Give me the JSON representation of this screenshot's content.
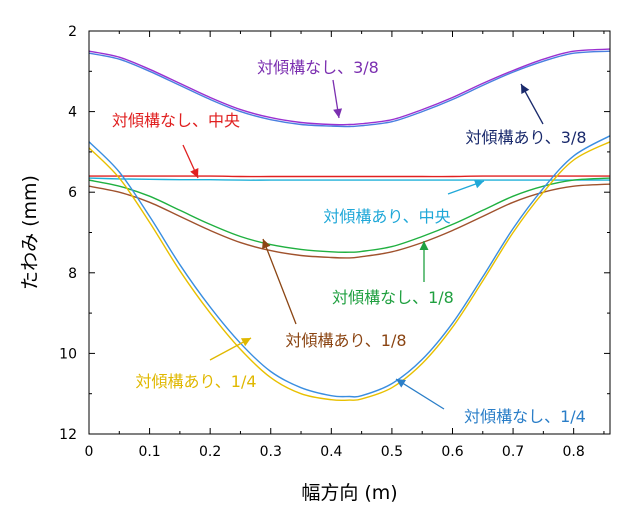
{
  "chart_data": {
    "type": "line",
    "title": "",
    "xlabel": "幅方向 (m)",
    "ylabel": "たわみ (mm)",
    "xlim": [
      0,
      0.86
    ],
    "ylim": [
      12,
      2
    ],
    "y_inverted": true,
    "grid": false,
    "x_ticks": [
      "0",
      "0.1",
      "0.2",
      "0.3",
      "0.4",
      "0.5",
      "0.6",
      "0.7",
      "0.8"
    ],
    "y_ticks": [
      "2",
      "4",
      "6",
      "8",
      "10",
      "12"
    ],
    "x": [
      0,
      0.05,
      0.1,
      0.15,
      0.2,
      0.25,
      0.3,
      0.35,
      0.4,
      0.43,
      0.45,
      0.5,
      0.55,
      0.6,
      0.65,
      0.7,
      0.75,
      0.8,
      0.86
    ],
    "series": [
      {
        "name": "対傾構なし、3/8",
        "color": "#9b30d0",
        "values": [
          2.5,
          2.65,
          2.95,
          3.3,
          3.65,
          3.95,
          4.15,
          4.27,
          4.32,
          4.32,
          4.3,
          4.2,
          3.95,
          3.65,
          3.3,
          2.98,
          2.7,
          2.5,
          2.45
        ]
      },
      {
        "name": "対傾構あり、3/8",
        "color": "#4a7fe0",
        "values": [
          2.55,
          2.7,
          3.0,
          3.35,
          3.7,
          4.0,
          4.2,
          4.32,
          4.36,
          4.37,
          4.35,
          4.25,
          4.0,
          3.7,
          3.35,
          3.02,
          2.75,
          2.55,
          2.5
        ]
      },
      {
        "name": "対傾構なし、中央",
        "color": "#e02020",
        "values": [
          5.6,
          5.6,
          5.6,
          5.6,
          5.6,
          5.61,
          5.61,
          5.61,
          5.61,
          5.61,
          5.61,
          5.61,
          5.61,
          5.61,
          5.6,
          5.6,
          5.6,
          5.6,
          5.6
        ]
      },
      {
        "name": "対傾構あり、中央",
        "color": "#20b0d8",
        "values": [
          5.65,
          5.67,
          5.68,
          5.69,
          5.69,
          5.7,
          5.7,
          5.7,
          5.7,
          5.7,
          5.7,
          5.7,
          5.7,
          5.7,
          5.7,
          5.7,
          5.7,
          5.7,
          5.7
        ]
      },
      {
        "name": "対傾構なし、1/8",
        "color": "#20b040",
        "values": [
          5.7,
          5.85,
          6.1,
          6.45,
          6.8,
          7.1,
          7.3,
          7.42,
          7.48,
          7.49,
          7.47,
          7.35,
          7.1,
          6.8,
          6.45,
          6.1,
          5.85,
          5.7,
          5.65
        ]
      },
      {
        "name": "対傾構あり、1/8",
        "color": "#a0522d",
        "values": [
          5.85,
          6.0,
          6.25,
          6.6,
          6.95,
          7.25,
          7.45,
          7.57,
          7.62,
          7.63,
          7.6,
          7.48,
          7.25,
          6.95,
          6.6,
          6.25,
          6.0,
          5.85,
          5.8
        ]
      },
      {
        "name": "対傾構なし、1/4",
        "color": "#3a8ee0",
        "values": [
          4.75,
          5.5,
          6.6,
          7.8,
          8.85,
          9.75,
          10.45,
          10.85,
          11.05,
          11.07,
          11.05,
          10.75,
          10.15,
          9.25,
          8.1,
          6.9,
          5.9,
          5.1,
          4.6
        ]
      },
      {
        "name": "対傾構あり、1/4",
        "color": "#e8c000",
        "values": [
          4.9,
          5.65,
          6.75,
          7.95,
          9.0,
          9.9,
          10.6,
          11.0,
          11.15,
          11.16,
          11.13,
          10.85,
          10.25,
          9.35,
          8.2,
          7.0,
          6.0,
          5.2,
          4.75
        ]
      }
    ],
    "annotations": [
      {
        "text": "対傾構なし、3/8",
        "color": "#7b2fb0",
        "series": 0
      },
      {
        "text": "対傾構あり、3/8",
        "color": "#1a2a6c",
        "series": 1
      },
      {
        "text": "対傾構なし、中央",
        "color": "#e02020",
        "series": 2
      },
      {
        "text": "対傾構あり、中央",
        "color": "#20a8d8",
        "series": 3
      },
      {
        "text": "対傾構なし、1/8",
        "color": "#20a040",
        "series": 4
      },
      {
        "text": "対傾構あり、1/8",
        "color": "#8b4513",
        "series": 5
      },
      {
        "text": "対傾構なし、1/4",
        "color": "#2a7ec8",
        "series": 6
      },
      {
        "text": "対傾構あり、1/4",
        "color": "#e0b800",
        "series": 7
      }
    ]
  }
}
